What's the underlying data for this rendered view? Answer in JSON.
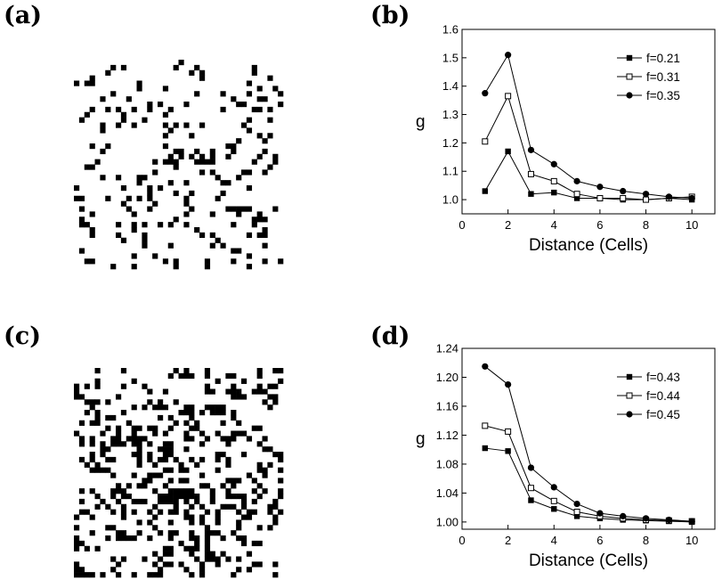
{
  "panels": {
    "a": {
      "label": "(a)",
      "grid_size": 40,
      "fill_fraction": 0.21,
      "cell_color": "#000000"
    },
    "c": {
      "label": "(c)",
      "grid_size": 40,
      "fill_fraction": 0.43,
      "cell_color": "#000000"
    }
  },
  "chart_data": [
    {
      "panel": "(b)",
      "type": "line",
      "title": "",
      "xlabel": "Distance (Cells)",
      "ylabel": "g",
      "xlim": [
        0,
        11
      ],
      "ylim": [
        0.95,
        1.6
      ],
      "xticks": [
        0,
        2,
        4,
        6,
        8,
        10
      ],
      "xtick_labels": [
        "0",
        "2",
        "4",
        "6",
        "8",
        "10"
      ],
      "yticks": [
        1.0,
        1.1,
        1.2,
        1.3,
        1.4,
        1.5,
        1.6
      ],
      "ytick_labels": [
        "1.0",
        "1.1",
        "1.2",
        "1.3",
        "1.4",
        "1.5",
        "1.6"
      ],
      "legend_position": "top-right",
      "grid": false,
      "x": [
        1,
        2,
        3,
        4,
        5,
        6,
        7,
        8,
        9,
        10
      ],
      "series": [
        {
          "name": "f=0.21",
          "marker": "filled-square",
          "values": [
            1.03,
            1.17,
            1.02,
            1.025,
            1.005,
            1.005,
            1.0,
            1.0,
            1.005,
            1.0
          ]
        },
        {
          "name": "f=0.31",
          "marker": "open-square",
          "values": [
            1.205,
            1.365,
            1.09,
            1.065,
            1.02,
            1.005,
            1.005,
            1.0,
            1.005,
            1.01
          ]
        },
        {
          "name": "f=0.35",
          "marker": "filled-circle",
          "values": [
            1.375,
            1.51,
            1.175,
            1.125,
            1.065,
            1.045,
            1.03,
            1.02,
            1.01,
            1.005
          ]
        }
      ]
    },
    {
      "panel": "(d)",
      "type": "line",
      "title": "",
      "xlabel": "Distance (Cells)",
      "ylabel": "g",
      "xlim": [
        0,
        11
      ],
      "ylim": [
        0.99,
        1.24
      ],
      "xticks": [
        0,
        2,
        4,
        6,
        8,
        10
      ],
      "xtick_labels": [
        "0",
        "2",
        "4",
        "6",
        "8",
        "10"
      ],
      "yticks": [
        1.0,
        1.04,
        1.08,
        1.12,
        1.16,
        1.2,
        1.24
      ],
      "ytick_labels": [
        "1.00",
        "1.04",
        "1.08",
        "1.12",
        "1.16",
        "1.20",
        "1.24"
      ],
      "legend_position": "top-right",
      "grid": false,
      "x": [
        1,
        2,
        3,
        4,
        5,
        6,
        7,
        8,
        9,
        10
      ],
      "series": [
        {
          "name": "f=0.43",
          "marker": "filled-square",
          "values": [
            1.102,
            1.098,
            1.03,
            1.018,
            1.008,
            1.005,
            1.003,
            1.002,
            1.001,
            1.0
          ]
        },
        {
          "name": "f=0.44",
          "marker": "open-square",
          "values": [
            1.133,
            1.125,
            1.047,
            1.029,
            1.014,
            1.008,
            1.005,
            1.003,
            1.002,
            1.001
          ]
        },
        {
          "name": "f=0.45",
          "marker": "filled-circle",
          "values": [
            1.215,
            1.19,
            1.075,
            1.048,
            1.025,
            1.012,
            1.008,
            1.005,
            1.003,
            1.001
          ]
        }
      ]
    }
  ]
}
